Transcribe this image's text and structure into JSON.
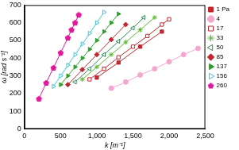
{
  "chart_data": {
    "type": "scatter",
    "x_label": "k [m⁻¹]",
    "y_label": "ω [rad s⁻¹]",
    "xlim": [
      0,
      2500
    ],
    "xticks": [
      0,
      500,
      1000,
      1500,
      2000,
      2500
    ],
    "ylim": [
      0,
      700
    ],
    "yticks": [
      0,
      100,
      200,
      300,
      400,
      500,
      600,
      700
    ],
    "grid": false,
    "legend": "right",
    "series": [
      {
        "name": "1 Pa",
        "color": "#c1272d",
        "marker": "square",
        "line_style": "solid",
        "x": [
          1000,
          1300,
          1600,
          1900
        ],
        "values": [
          290,
          375,
          465,
          550
        ]
      },
      {
        "name": "4",
        "color": "#f4a6cf",
        "marker": "circle",
        "line_style": "solid",
        "x": [
          1200,
          1400,
          1600,
          1800,
          2000,
          2200,
          2400
        ],
        "values": [
          230,
          265,
          305,
          340,
          380,
          420,
          455
        ]
      },
      {
        "name": "17",
        "color": "#c1272d",
        "marker": "open_square",
        "line_style": "solid",
        "x": [
          900,
          1100,
          1300,
          1500,
          1700,
          1900,
          2000
        ],
        "values": [
          280,
          340,
          405,
          465,
          525,
          590,
          620
        ]
      },
      {
        "name": "33",
        "color": "#5cb82e",
        "marker": "star",
        "line_style": "solid",
        "x": [
          800,
          1000,
          1200,
          1400,
          1600,
          1800
        ],
        "values": [
          280,
          350,
          420,
          490,
          560,
          630
        ]
      },
      {
        "name": "50",
        "color": "#2e8b57",
        "marker": "open_triangle_left",
        "line_style": "solid",
        "x": [
          700,
          900,
          1100,
          1300,
          1500,
          1650
        ],
        "values": [
          265,
          340,
          420,
          495,
          570,
          630
        ]
      },
      {
        "name": "85",
        "color": "#c1272d",
        "marker": "diamond",
        "line_style": "solid",
        "x": [
          600,
          800,
          1000,
          1200,
          1400
        ],
        "values": [
          250,
          335,
          420,
          505,
          590
        ]
      },
      {
        "name": "137",
        "color": "#2ea02c",
        "marker": "triangle_right",
        "line_style": "solid",
        "x": [
          500,
          600,
          700,
          800,
          900,
          1000,
          1100,
          1200,
          1300
        ],
        "values": [
          250,
          300,
          350,
          400,
          450,
          500,
          550,
          600,
          650
        ]
      },
      {
        "name": "156",
        "color": "#3cc8d8",
        "marker": "open_triangle_right",
        "line_style": "solid",
        "x": [
          400,
          500,
          600,
          700,
          800,
          900,
          1000,
          1100
        ],
        "values": [
          240,
          300,
          360,
          420,
          480,
          540,
          600,
          660
        ]
      },
      {
        "name": "260",
        "color": "#e0189b",
        "marker": "pentagon",
        "line_style": "solid",
        "x": [
          200,
          300,
          400,
          500,
          600,
          650,
          700,
          750
        ],
        "values": [
          170,
          260,
          345,
          430,
          515,
          560,
          600,
          645
        ]
      }
    ]
  }
}
